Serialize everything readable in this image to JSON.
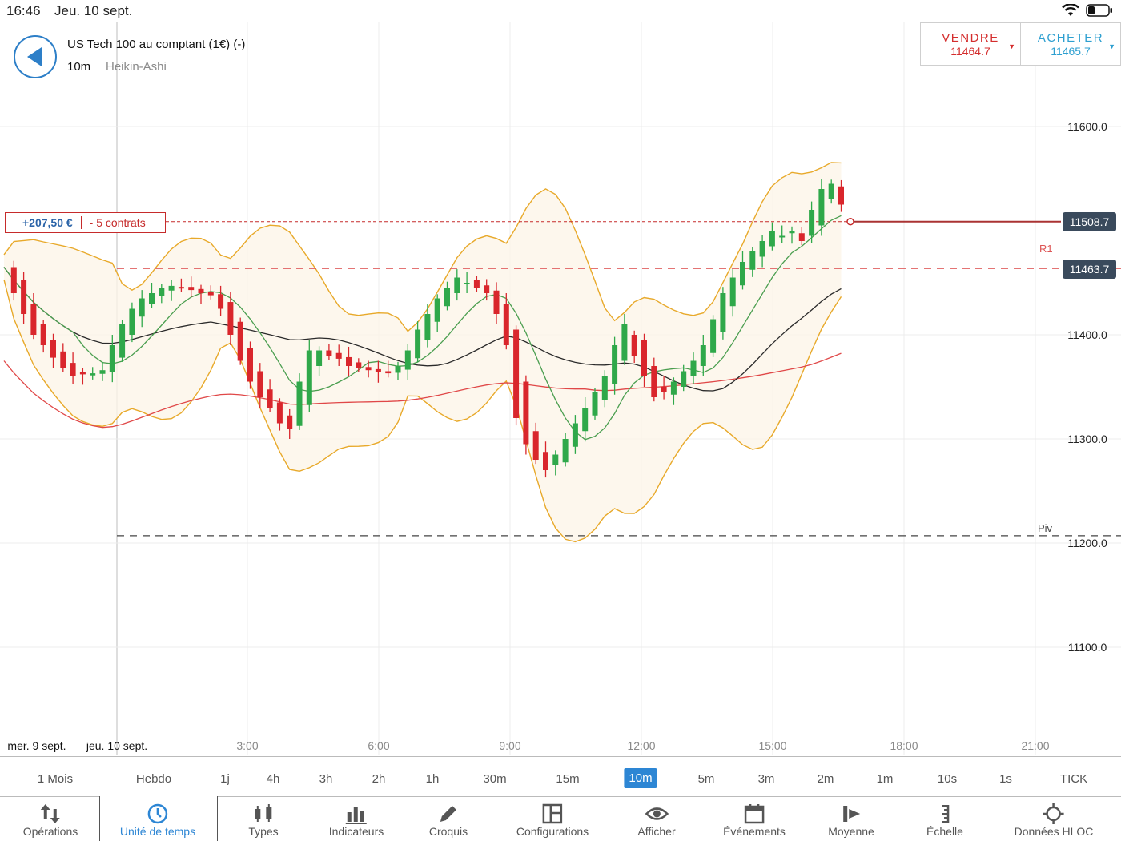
{
  "status_bar": {
    "time": "16:46",
    "date": "Jeu. 10 sept."
  },
  "instrument": {
    "title": "US Tech 100 au comptant (1€) (-)",
    "timeframe": "10m",
    "chart_type": "Heikin-Ashi"
  },
  "trade": {
    "sell": {
      "label": "VENDRE",
      "price": "11464.7"
    },
    "buy": {
      "label": "ACHETER",
      "price": "11465.7"
    }
  },
  "position": {
    "pnl": "+207,50 €",
    "quantity": "- 5 contrats",
    "price_tag": "11508.7"
  },
  "levels": {
    "r1_label": "R1",
    "r1_tag": "11463.7",
    "pivot_label": "Piv"
  },
  "colors": {
    "up": "#2fa84a",
    "down": "#d9262c",
    "bollinger": "#e8a92a",
    "ma_short": "#4a9e4f",
    "ma_mid": "#2a2a2a",
    "ma_long": "#e04848",
    "accent": "#2d86d4"
  },
  "chart_data": {
    "type": "candlestick",
    "y_axis": {
      "ticks": [
        "11600.0",
        "11400.0",
        "11300.0",
        "11200.0",
        "11100.0"
      ],
      "ylim": [
        11030,
        11705
      ]
    },
    "x_axis": {
      "ticks": [
        "mer. 9 sept.",
        "jeu. 10 sept.",
        "3:00",
        "6:00",
        "9:00",
        "12:00",
        "15:00",
        "18:00",
        "21:00"
      ]
    },
    "r1": 11463.7,
    "pivot": 11207,
    "position_price": 11508.7,
    "close_series": [
      11465,
      11440,
      11420,
      11400,
      11390,
      11378,
      11368,
      11360,
      11362,
      11363,
      11366,
      11390,
      11410,
      11425,
      11435,
      11440,
      11445,
      11447,
      11445,
      11443,
      11440,
      11438,
      11425,
      11400,
      11375,
      11355,
      11340,
      11330,
      11315,
      11310,
      11355,
      11385,
      11385,
      11380,
      11377,
      11370,
      11368,
      11366,
      11364,
      11363,
      11370,
      11385,
      11405,
      11420,
      11435,
      11445,
      11455,
      11450,
      11445,
      11440,
      11420,
      11390,
      11320,
      11295,
      11280,
      11270,
      11285,
      11300,
      11315,
      11330,
      11345,
      11360,
      11390,
      11410,
      11380,
      11360,
      11340,
      11345,
      11355,
      11365,
      11375,
      11390,
      11415,
      11440,
      11455,
      11470,
      11480,
      11490,
      11500,
      11495,
      11500,
      11490,
      11520,
      11540,
      11545,
      11525
    ]
  },
  "timeframes": [
    "1 Mois",
    "Hebdo",
    "1j",
    "4h",
    "3h",
    "2h",
    "1h",
    "30m",
    "15m",
    "10m",
    "5m",
    "3m",
    "2m",
    "1m",
    "10s",
    "1s",
    "TICK"
  ],
  "active_timeframe": "10m",
  "tools": [
    {
      "label": "Opérations",
      "icon": "arrows-updown-icon"
    },
    {
      "label": "Unité de temps",
      "icon": "clock-icon"
    },
    {
      "label": "Types",
      "icon": "candles-icon"
    },
    {
      "label": "Indicateurs",
      "icon": "bars-icon"
    },
    {
      "label": "Croquis",
      "icon": "pencil-icon"
    },
    {
      "label": "Configurations",
      "icon": "layout-icon"
    },
    {
      "label": "Afficher",
      "icon": "eye-icon"
    },
    {
      "label": "Événements",
      "icon": "calendar-icon"
    },
    {
      "label": "Moyenne",
      "icon": "average-icon"
    },
    {
      "label": "Échelle",
      "icon": "scale-icon"
    },
    {
      "label": "Données HLOC",
      "icon": "crosshair-icon"
    }
  ]
}
